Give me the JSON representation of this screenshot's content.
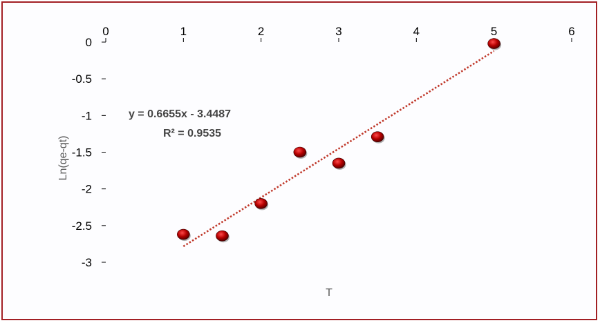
{
  "chart_data": {
    "type": "scatter",
    "xlabel": "T",
    "ylabel": "Ln(qe-qt)",
    "xlim": [
      0,
      6
    ],
    "ylim": [
      -3,
      0
    ],
    "x_ticks": [
      "0",
      "1",
      "2",
      "3",
      "4",
      "5",
      "6"
    ],
    "y_ticks": [
      "0",
      "-0.5",
      "-1",
      "-1.5",
      "-2",
      "-2.5",
      "-3"
    ],
    "x_tick_values": [
      0,
      1,
      2,
      3,
      4,
      5,
      6
    ],
    "y_tick_values": [
      0,
      -0.5,
      -1,
      -1.5,
      -2,
      -2.5,
      -3
    ],
    "series": [
      {
        "x": [
          1,
          1.5,
          2,
          2.5,
          3,
          3.5,
          5
        ],
        "y": [
          -2.62,
          -2.64,
          -2.2,
          -1.5,
          -1.65,
          -1.29,
          -0.02
        ],
        "color": "#c00000"
      }
    ],
    "trendline": {
      "type": "linear",
      "slope": 0.6655,
      "intercept": -3.4487,
      "x_range": [
        1,
        5
      ],
      "color": "#c0392b",
      "equation": "y = 0.6655x - 3.4487",
      "r_squared": "R² = 0.9535"
    },
    "grid": false,
    "legend": "none",
    "border_color": "#a21f24"
  }
}
